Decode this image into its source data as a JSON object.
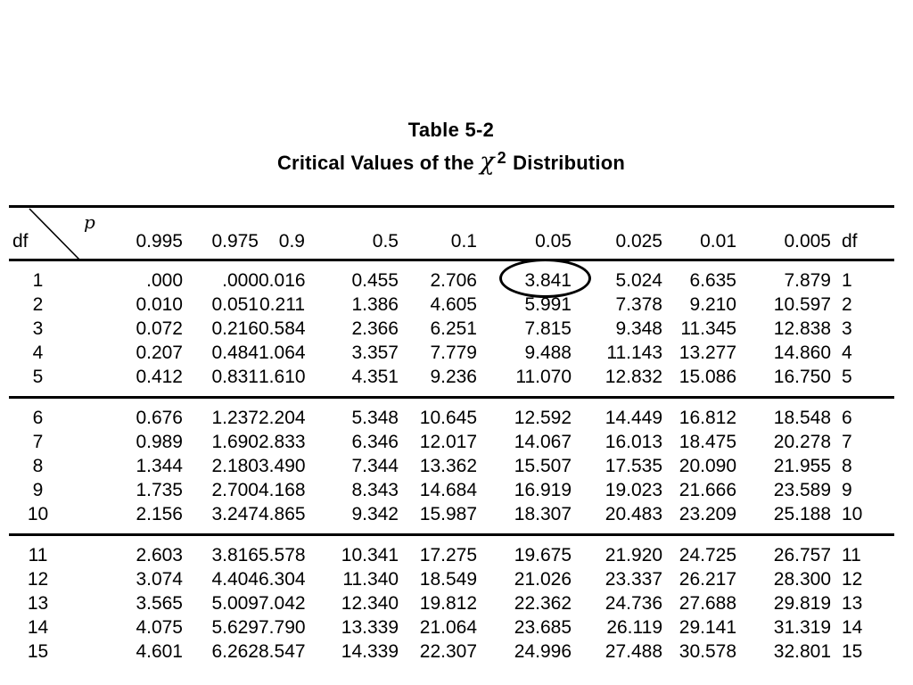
{
  "page": {
    "title": "Table 5-2",
    "subtitle": {
      "prefix": "Critical Values of the ",
      "symbol": "χ",
      "superscript": "2",
      "suffix": " Distribution"
    }
  },
  "table": {
    "corner": {
      "df_label": "df",
      "p_label": "p"
    },
    "df_right_label": "df",
    "p_values": [
      "0.995",
      "0.975",
      "0.9",
      "0.5",
      "0.1",
      "0.05",
      "0.025",
      "0.01",
      "0.005"
    ],
    "circled": {
      "df": "1",
      "col_index": 5,
      "value": "3.841"
    },
    "circle_color": "#000000",
    "groups": [
      {
        "rows": [
          {
            "df": "1",
            "values": [
              ".000",
              ".000",
              "0.016",
              "0.455",
              "2.706",
              "3.841",
              "5.024",
              "6.635",
              "7.879"
            ]
          },
          {
            "df": "2",
            "values": [
              "0.010",
              "0.051",
              "0.211",
              "1.386",
              "4.605",
              "5.991",
              "7.378",
              "9.210",
              "10.597"
            ]
          },
          {
            "df": "3",
            "values": [
              "0.072",
              "0.216",
              "0.584",
              "2.366",
              "6.251",
              "7.815",
              "9.348",
              "11.345",
              "12.838"
            ]
          },
          {
            "df": "4",
            "values": [
              "0.207",
              "0.484",
              "1.064",
              "3.357",
              "7.779",
              "9.488",
              "11.143",
              "13.277",
              "14.860"
            ]
          },
          {
            "df": "5",
            "values": [
              "0.412",
              "0.831",
              "1.610",
              "4.351",
              "9.236",
              "11.070",
              "12.832",
              "15.086",
              "16.750"
            ]
          }
        ]
      },
      {
        "rows": [
          {
            "df": "6",
            "values": [
              "0.676",
              "1.237",
              "2.204",
              "5.348",
              "10.645",
              "12.592",
              "14.449",
              "16.812",
              "18.548"
            ]
          },
          {
            "df": "7",
            "values": [
              "0.989",
              "1.690",
              "2.833",
              "6.346",
              "12.017",
              "14.067",
              "16.013",
              "18.475",
              "20.278"
            ]
          },
          {
            "df": "8",
            "values": [
              "1.344",
              "2.180",
              "3.490",
              "7.344",
              "13.362",
              "15.507",
              "17.535",
              "20.090",
              "21.955"
            ]
          },
          {
            "df": "9",
            "values": [
              "1.735",
              "2.700",
              "4.168",
              "8.343",
              "14.684",
              "16.919",
              "19.023",
              "21.666",
              "23.589"
            ]
          },
          {
            "df": "10",
            "values": [
              "2.156",
              "3.247",
              "4.865",
              "9.342",
              "15.987",
              "18.307",
              "20.483",
              "23.209",
              "25.188"
            ]
          }
        ]
      },
      {
        "rows": [
          {
            "df": "11",
            "values": [
              "2.603",
              "3.816",
              "5.578",
              "10.341",
              "17.275",
              "19.675",
              "21.920",
              "24.725",
              "26.757"
            ]
          },
          {
            "df": "12",
            "values": [
              "3.074",
              "4.404",
              "6.304",
              "11.340",
              "18.549",
              "21.026",
              "23.337",
              "26.217",
              "28.300"
            ]
          },
          {
            "df": "13",
            "values": [
              "3.565",
              "5.009",
              "7.042",
              "12.340",
              "19.812",
              "22.362",
              "24.736",
              "27.688",
              "29.819"
            ]
          },
          {
            "df": "14",
            "values": [
              "4.075",
              "5.629",
              "7.790",
              "13.339",
              "21.064",
              "23.685",
              "26.119",
              "29.141",
              "31.319"
            ]
          },
          {
            "df": "15",
            "values": [
              "4.601",
              "6.262",
              "8.547",
              "14.339",
              "22.307",
              "24.996",
              "27.488",
              "30.578",
              "32.801"
            ]
          }
        ]
      }
    ]
  }
}
